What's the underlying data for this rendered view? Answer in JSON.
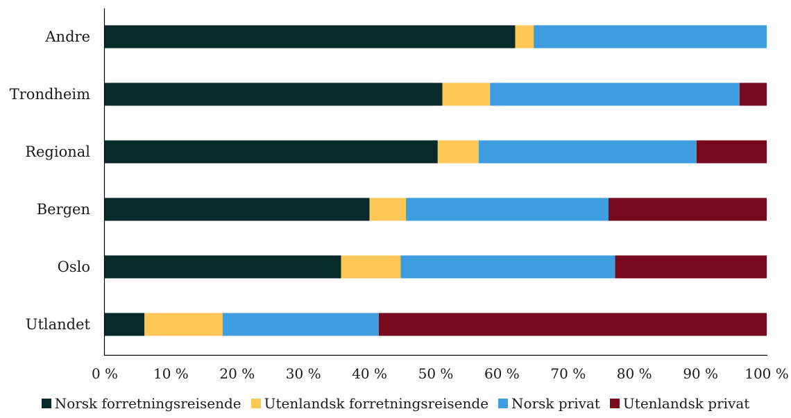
{
  "chart_data": {
    "type": "bar",
    "orientation": "horizontal",
    "stacked": true,
    "categories": [
      "Andre",
      "Trondheim",
      "Regional",
      "Bergen",
      "Oslo",
      "Utlandet"
    ],
    "series": [
      {
        "name": "Norsk forretningsreisende",
        "color": "#062b2a",
        "values": [
          62,
          51,
          50.3,
          40,
          35.7,
          6
        ]
      },
      {
        "name": "Utenlandsk forretningsreisende",
        "color": "#fcc757",
        "values": [
          2.8,
          7.2,
          6.2,
          5.5,
          9,
          11.8
        ]
      },
      {
        "name": "Norsk privat",
        "color": "#3e9ddf",
        "values": [
          35.2,
          37.7,
          32.9,
          30.6,
          32.4,
          23.6
        ]
      },
      {
        "name": "Utenlandsk privat",
        "color": "#780a1e",
        "values": [
          0,
          4.1,
          10.6,
          23.9,
          22.9,
          58.6
        ]
      }
    ],
    "xlim": [
      0,
      100
    ],
    "xticks": [
      "0 %",
      "10 %",
      "20 %",
      "30 %",
      "40 %",
      "50 %",
      "60 %",
      "70 %",
      "80 %",
      "90 %",
      "100 %"
    ],
    "legend_position": "bottom",
    "grid": false
  }
}
